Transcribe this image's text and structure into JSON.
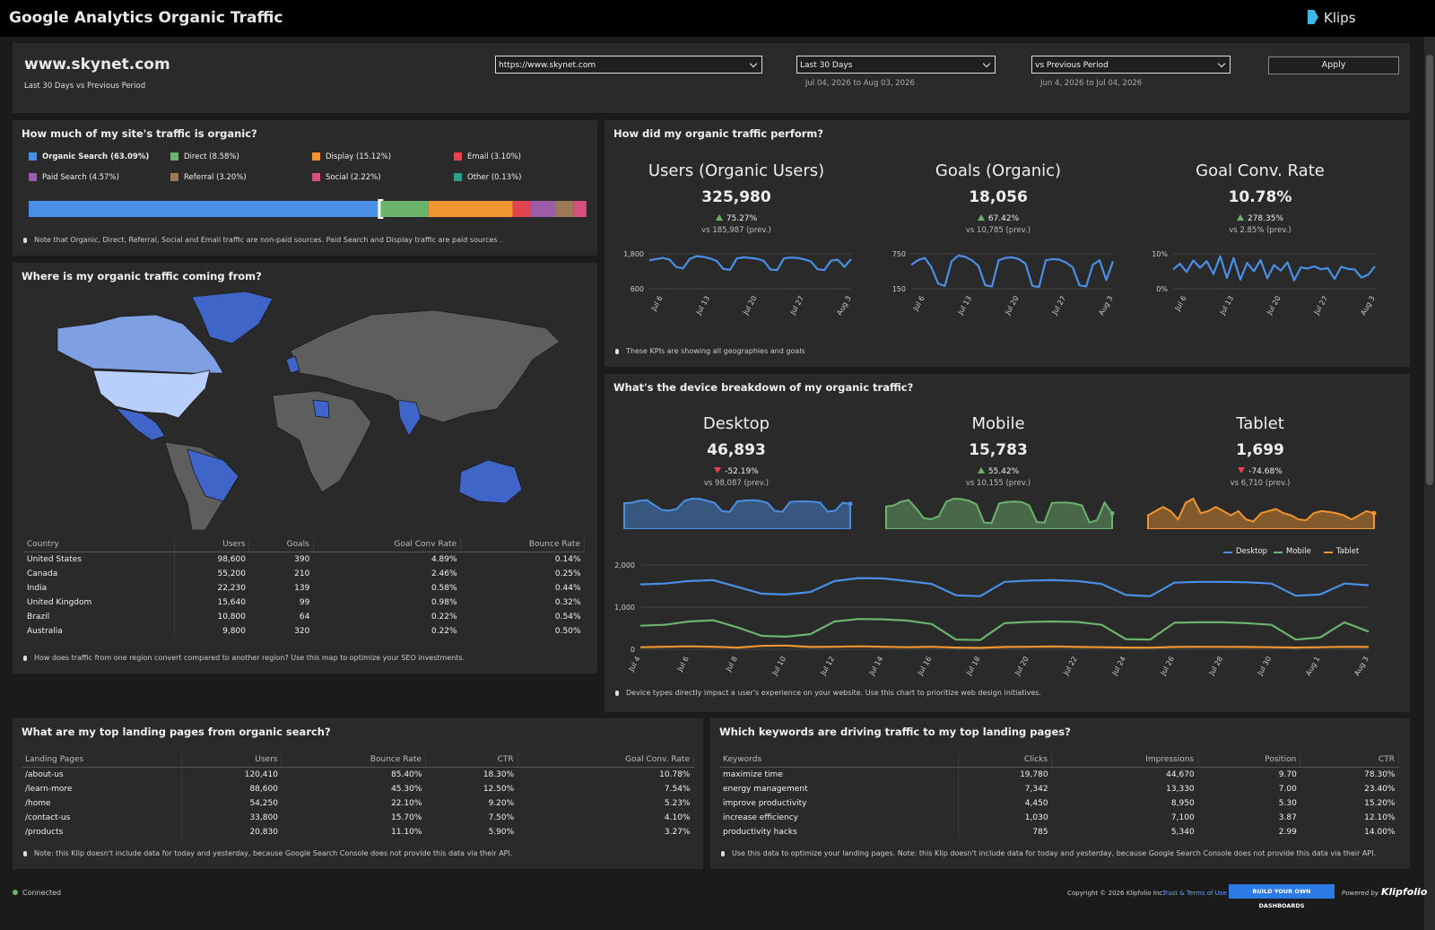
{
  "header": {
    "title": "Google Analytics Organic Traffic",
    "brand": "Klips"
  },
  "filters": {
    "site": "www.skynet.com",
    "subtitle": "Last 30 Days vs Previous Period",
    "url_select": "https://www.skynet.com",
    "range_select": "Last 30 Days",
    "range_dates": "Jul 04, 2026  to Aug 03, 2026",
    "compare_select": "vs Previous Period",
    "compare_dates": "Jun 4, 2026  to Jul 04, 2026",
    "apply": "Apply"
  },
  "traffic_share": {
    "title": "How much of my site's traffic is organic?",
    "chart_data": {
      "type": "stacked-bar",
      "series": [
        {
          "name": "Organic Search (63.09%)",
          "value": 63.09,
          "color": "#4a8fe6"
        },
        {
          "name": "Direct (8.58%)",
          "value": 8.58,
          "color": "#6cb36e"
        },
        {
          "name": "Display (15.12%)",
          "value": 15.12,
          "color": "#f0952f"
        },
        {
          "name": "Email (3.10%)",
          "value": 3.1,
          "color": "#e2434f"
        },
        {
          "name": "Paid Search (4.57%)",
          "value": 4.57,
          "color": "#9d5ca8"
        },
        {
          "name": "Referral (3.20%)",
          "value": 3.2,
          "color": "#9c7a58"
        },
        {
          "name": "Social (2.22%)",
          "value": 2.22,
          "color": "#d6507c"
        },
        {
          "name": "Other (0.13%)",
          "value": 0.13,
          "color": "#2e9c8d"
        }
      ]
    },
    "note": "Note that Organic, Direct, Referral, Social and Email traffic are non-paid sources. Paid Search and Display traffic are paid sources ."
  },
  "geo": {
    "title": "Where is my organic traffic coming from?",
    "table": {
      "columns": [
        "Country",
        "Users",
        "Goals",
        "Goal Conv Rate",
        "Bounce Rate"
      ],
      "rows": [
        [
          "United States",
          "98,600",
          "390",
          "4.89%",
          "0.14%"
        ],
        [
          "Canada",
          "55,200",
          "210",
          "2.46%",
          "0.25%"
        ],
        [
          "India",
          "22,230",
          "139",
          "0.58%",
          "0.44%"
        ],
        [
          "United Kingdom",
          "15,640",
          "99",
          "0.98%",
          "0.32%"
        ],
        [
          "Brazil",
          "10,800",
          "64",
          "0.22%",
          "0.54%"
        ],
        [
          "Australia",
          "9,800",
          "320",
          "0.22%",
          "0.50%"
        ]
      ]
    },
    "note": "How does traffic from one region convert compared to another region? Use this map to optimize your SEO investments."
  },
  "kpis": {
    "title": "How did my organic traffic perform?",
    "note": "These KPIs are showing all geographies and goals",
    "categories": [
      null,
      null,
      "Jul 6",
      null,
      null,
      null,
      null,
      null,
      null,
      "Jul 13",
      null,
      null,
      null,
      null,
      null,
      null,
      "Jul 20",
      null,
      null,
      null,
      null,
      null,
      null,
      "Jul 27",
      null,
      null,
      null,
      null,
      null,
      null,
      "Aug 3"
    ],
    "items": [
      {
        "name": "Users (Organic Users)",
        "value": "325,980",
        "delta": "75.27%",
        "direction": "up",
        "prev": "vs 185,987 (prev.)",
        "chart_data": {
          "type": "line",
          "color": "#4a8fe6",
          "ylim": [
            600,
            1800
          ],
          "yticks": [
            600,
            {
              "value": 1800,
              "label": "1,800"
            }
          ],
          "values": [
            1580,
            1620,
            1660,
            1600,
            1350,
            1300,
            1620,
            1720,
            1700,
            1640,
            1560,
            1280,
            1250,
            1640,
            1680,
            1660,
            1630,
            1560,
            1260,
            1240,
            1640,
            1670,
            1660,
            1610,
            1540,
            1270,
            1240,
            1560,
            1600,
            1350,
            1620
          ]
        }
      },
      {
        "name": "Goals (Organic)",
        "value": "18,056",
        "delta": "67.42%",
        "direction": "up",
        "prev": "vs 10,785 (prev.)",
        "chart_data": {
          "type": "line",
          "color": "#4a8fe6",
          "ylim": [
            150,
            750
          ],
          "yticks": [
            150,
            750
          ],
          "values": [
            560,
            640,
            680,
            520,
            240,
            200,
            620,
            720,
            700,
            640,
            540,
            210,
            190,
            640,
            680,
            690,
            660,
            580,
            200,
            180,
            640,
            660,
            650,
            600,
            520,
            210,
            190,
            560,
            640,
            300,
            620
          ]
        }
      },
      {
        "name": "Goal Conv. Rate",
        "value": "10.78%",
        "delta": "278.35%",
        "direction": "up",
        "prev": "vs 2.85% (prev.)",
        "chart_data": {
          "type": "line",
          "color": "#4a8fe6",
          "ylim": [
            0,
            10
          ],
          "yticks": [
            {
              "value": 0,
              "label": "0%"
            },
            {
              "value": 10,
              "label": "10%"
            }
          ],
          "values": [
            5.5,
            7.2,
            4.8,
            8.1,
            6.0,
            7.9,
            4.2,
            9.3,
            3.1,
            8.8,
            2.6,
            7.4,
            5.0,
            8.2,
            3.0,
            6.8,
            5.2,
            7.6,
            2.4,
            6.1,
            5.8,
            6.4,
            5.6,
            5.9,
            2.8,
            6.3,
            5.7,
            5.5,
            3.2,
            4.0,
            6.4
          ]
        }
      }
    ]
  },
  "devices": {
    "title": "What's the device breakdown of my organic traffic?",
    "note": "Device types directly impact a user's experience on your website. Use this chart to prioritize web design initiatives.",
    "items": [
      {
        "name": "Desktop",
        "value": "46,893",
        "delta": "-52.19%",
        "direction": "down",
        "prev": "vs 98,087 (prev.)"
      },
      {
        "name": "Mobile",
        "value": "15,783",
        "delta": "55.42%",
        "direction": "up",
        "prev": "vs 10,155 (prev.)"
      },
      {
        "name": "Tablet",
        "value": "1,699",
        "delta": "-74.68%",
        "direction": "down",
        "prev": "vs 6,710 (prev.)"
      }
    ],
    "chart_data": {
      "type": "line",
      "ylim": [
        0,
        2000
      ],
      "yticks": [
        0,
        {
          "value": 1000,
          "label": "1,000"
        },
        {
          "value": 2000,
          "label": "2,000"
        }
      ],
      "legend": "top-right",
      "categories": [
        "Jul 4",
        null,
        "Jul 6",
        null,
        "Jul 8",
        null,
        "Jul 10",
        null,
        "Jul 12",
        null,
        "Jul 14",
        null,
        "Jul 16",
        null,
        "Jul 18",
        null,
        "Jul 20",
        null,
        "Jul 22",
        null,
        "Jul 24",
        null,
        "Jul 26",
        null,
        "Jul 28",
        null,
        "Jul 30",
        null,
        "Aug 1",
        null,
        "Aug 3"
      ],
      "series": [
        {
          "name": "Desktop",
          "color": "#4a8fe6",
          "values": [
            1540,
            1560,
            1620,
            1640,
            1480,
            1320,
            1300,
            1360,
            1620,
            1690,
            1680,
            1620,
            1550,
            1280,
            1260,
            1600,
            1630,
            1640,
            1620,
            1550,
            1290,
            1260,
            1580,
            1600,
            1600,
            1590,
            1560,
            1270,
            1300,
            1560,
            1520
          ]
        },
        {
          "name": "Mobile",
          "color": "#6cb36e",
          "values": [
            560,
            580,
            660,
            690,
            520,
            320,
            300,
            360,
            660,
            720,
            710,
            680,
            600,
            230,
            220,
            620,
            650,
            660,
            650,
            580,
            240,
            230,
            630,
            640,
            640,
            620,
            580,
            230,
            280,
            640,
            420
          ]
        },
        {
          "name": "Tablet",
          "color": "#f0952f",
          "values": [
            50,
            60,
            70,
            60,
            40,
            80,
            90,
            55,
            60,
            70,
            60,
            50,
            60,
            40,
            35,
            55,
            60,
            65,
            55,
            50,
            40,
            38,
            55,
            60,
            58,
            55,
            50,
            40,
            50,
            60,
            55
          ]
        }
      ]
    }
  },
  "landing": {
    "title": "What are my top landing pages from organic search?",
    "table": {
      "columns": [
        "Landing Pages",
        "Users",
        "Bounce Rate",
        "CTR",
        "Goal Conv. Rate"
      ],
      "rows": [
        [
          "/about-us",
          "120,410",
          "85.40%",
          "18.30%",
          "10.78%"
        ],
        [
          "/learn-more",
          "88,600",
          "45.30%",
          "12.50%",
          "7.54%"
        ],
        [
          "/home",
          "54,250",
          "22.10%",
          "9.20%",
          "5.23%"
        ],
        [
          "/contact-us",
          "33,800",
          "15.70%",
          "7.50%",
          "4.10%"
        ],
        [
          "/products",
          "20,830",
          "11.10%",
          "5.90%",
          "3.27%"
        ]
      ]
    },
    "note": "Note: this Klip doesn't include data for today and yesterday, because Google Search Console does not provide this data via their API."
  },
  "keywords": {
    "title": "Which keywords are driving traffic to my top landing pages?",
    "table": {
      "columns": [
        "Keywords",
        "Clicks",
        "Impressions",
        "Position",
        "CTR"
      ],
      "rows": [
        [
          "maximize time",
          "19,780",
          "44,670",
          "9.70",
          "78.30%"
        ],
        [
          "energy management",
          "7,342",
          "13,330",
          "7.00",
          "23.40%"
        ],
        [
          "improve productivity",
          "4,450",
          "8,950",
          "5.30",
          "15.20%"
        ],
        [
          "increase efficiency",
          "1,030",
          "7,100",
          "3.87",
          "12.10%"
        ],
        [
          "productivity hacks",
          "785",
          "5,340",
          "2.99",
          "14.00%"
        ]
      ]
    },
    "note": "Use this data to optimize your landing pages. Note: this Klip doesn't include data for today and yesterday, because Google Search Console does not provide this data via their API."
  },
  "footer": {
    "status": "Connected",
    "copyright": "Copyright © 2026 Klipfolio Inc.",
    "terms": "Trust & Terms of Use",
    "cta": "BUILD YOUR OWN DASHBOARDS",
    "powered": "Powered by",
    "logo": "Klipfolio"
  }
}
